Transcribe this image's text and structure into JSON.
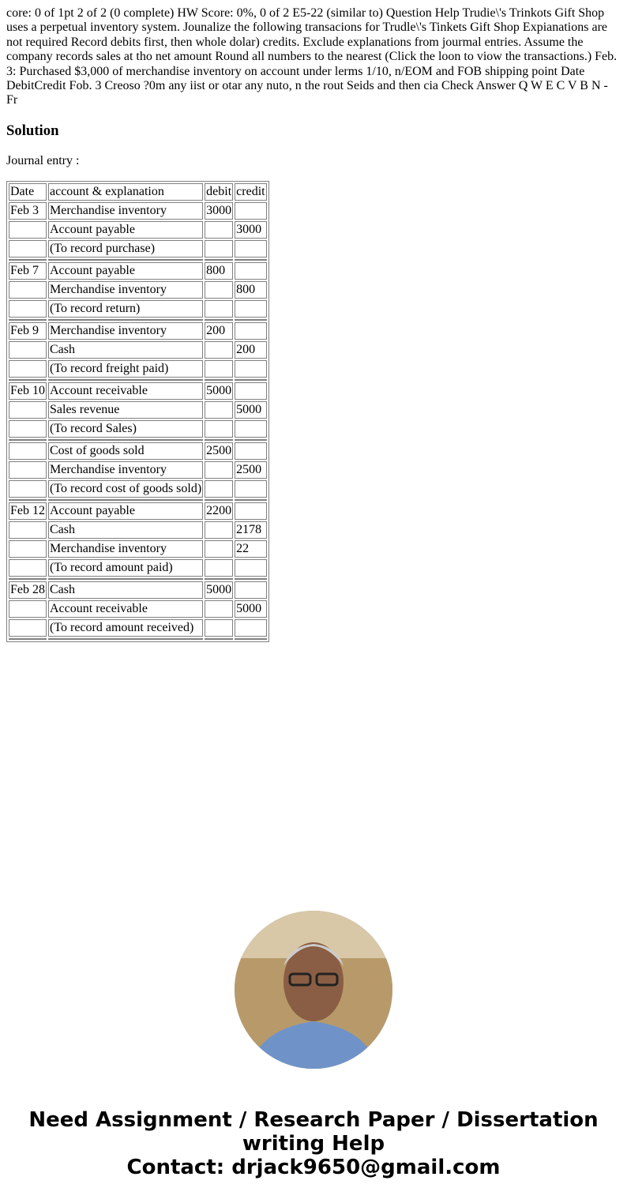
{
  "question": "core: 0 of 1pt 2 of 2 (0 complete) HW Score: 0%, 0 of 2 E5-22 (similar to) Question Help Trudie\\'s Trinkots Gift Shop uses a perpetual inventory system. Jounalize the following transacions for Trudle\\'s Tinkets Gift Shop Expianations are not required Record debits first, then whole dolar) credits. Exclude explanations from jourmal entries. Assume the company records sales at tho net amount Round all numbers to the nearest (Click the loon to viow the transactions.) Feb. 3: Purchased $3,000 of merchandise inventory on account under lerms 1/10, n/EOM and FOB shipping point Date DebitCredit Fob. 3 Creoso ?0m any iist or otar any nuto, n the rout Seids and then cia Check Answer Q W E C V B N - Fr",
  "solution_heading": "Solution",
  "journal_label": "Journal entry :",
  "table": {
    "headers": [
      "Date",
      "account & explanation",
      "debit",
      "credit"
    ],
    "groups": [
      [
        [
          "Feb 3",
          "Merchandise inventory",
          "3000",
          ""
        ],
        [
          "",
          "Account payable",
          "",
          "3000"
        ],
        [
          "",
          "(To record purchase)",
          "",
          ""
        ]
      ],
      [
        [
          "Feb 7",
          "Account payable",
          "800",
          ""
        ],
        [
          "",
          "Merchandise inventory",
          "",
          "800"
        ],
        [
          "",
          "(To record return)",
          "",
          ""
        ]
      ],
      [
        [
          "Feb 9",
          "Merchandise inventory",
          "200",
          ""
        ],
        [
          "",
          "Cash",
          "",
          "200"
        ],
        [
          "",
          "(To record freight paid)",
          "",
          ""
        ]
      ],
      [
        [
          "Feb 10",
          "Account receivable",
          "5000",
          ""
        ],
        [
          "",
          "Sales revenue",
          "",
          "5000"
        ],
        [
          "",
          "(To record Sales)",
          "",
          ""
        ]
      ],
      [
        [
          "",
          "Cost of goods sold",
          "2500",
          ""
        ],
        [
          "",
          "Merchandise inventory",
          "",
          "2500"
        ],
        [
          "",
          "(To record cost of goods sold)",
          "",
          ""
        ]
      ],
      [
        [
          "Feb 12",
          "Account payable",
          "2200",
          ""
        ],
        [
          "",
          "Cash",
          "",
          "2178"
        ],
        [
          "",
          "Merchandise inventory",
          "",
          "22"
        ],
        [
          "",
          "(To record amount paid)",
          "",
          ""
        ]
      ],
      [
        [
          "Feb 28",
          "Cash",
          "5000",
          ""
        ],
        [
          "",
          "Account receivable",
          "",
          "5000"
        ],
        [
          "",
          "(To record amount received)",
          "",
          ""
        ]
      ]
    ]
  },
  "promo": {
    "line1": "Need Assignment / Research Paper / Dissertation writing Help",
    "line2": "Contact: drjack9650@gmail.com"
  }
}
